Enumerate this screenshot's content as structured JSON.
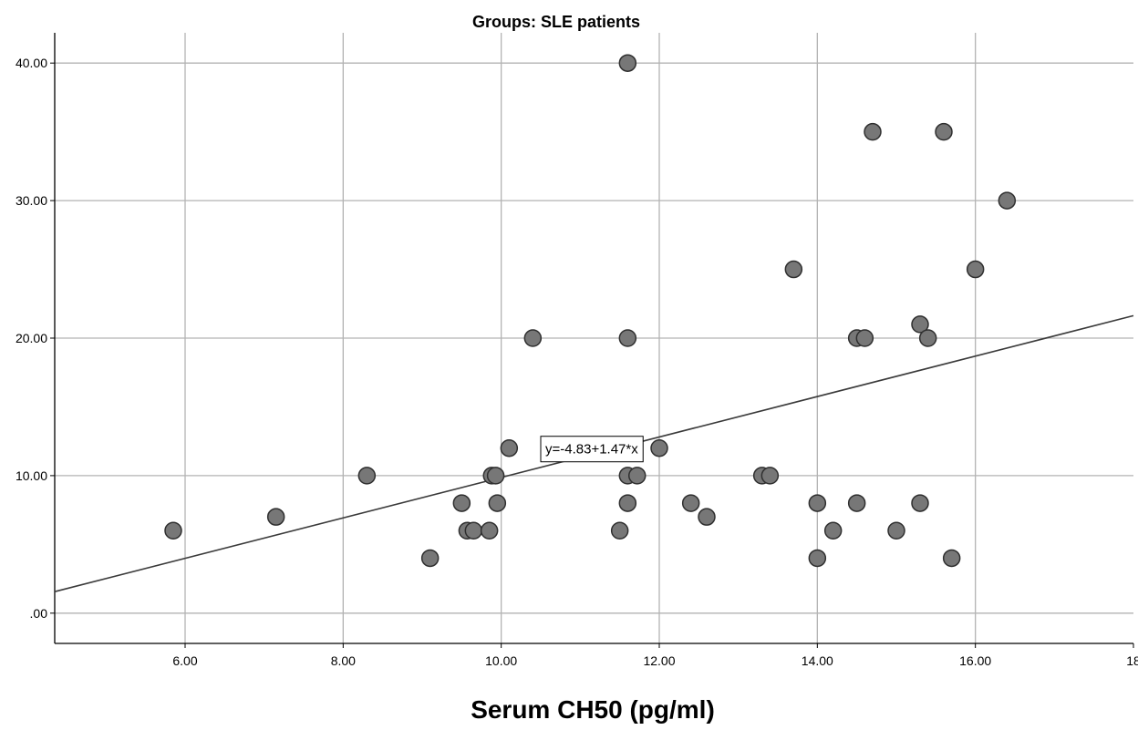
{
  "colors": {
    "point_fill": "#777777",
    "point_stroke": "#2f2f2f",
    "fit_line": "#3a3a3a",
    "grid": "#b3b3b3",
    "axis": "#000000",
    "background": "#ffffff"
  },
  "chart_data": {
    "type": "scatter",
    "title": "Groups: SLE patients",
    "xlabel": "Serum CH50 (pg/ml)",
    "ylabel": "",
    "x_ticks": [
      "6.00",
      "8.00",
      "10.00",
      "12.00",
      "14.00",
      "16.00",
      "18"
    ],
    "y_ticks": [
      ".00",
      "10.00",
      "20.00",
      "30.00",
      "40.00"
    ],
    "x_tick_values": [
      6,
      8,
      10,
      12,
      14,
      16,
      18
    ],
    "y_tick_values": [
      0,
      10,
      20,
      30,
      40
    ],
    "xlim": [
      4.35,
      18.0
    ],
    "ylim": [
      -2.2,
      42.2
    ],
    "grid": true,
    "fit_line": {
      "label": "y=-4.83+1.47*x",
      "intercept": -4.83,
      "slope": 1.47
    },
    "points": [
      {
        "x": 5.85,
        "y": 6
      },
      {
        "x": 7.15,
        "y": 7
      },
      {
        "x": 8.3,
        "y": 10
      },
      {
        "x": 9.1,
        "y": 4
      },
      {
        "x": 9.5,
        "y": 8
      },
      {
        "x": 9.57,
        "y": 6
      },
      {
        "x": 9.65,
        "y": 6
      },
      {
        "x": 9.85,
        "y": 6
      },
      {
        "x": 9.88,
        "y": 10
      },
      {
        "x": 9.93,
        "y": 10
      },
      {
        "x": 9.95,
        "y": 8
      },
      {
        "x": 10.1,
        "y": 12
      },
      {
        "x": 10.4,
        "y": 20
      },
      {
        "x": 11.5,
        "y": 6
      },
      {
        "x": 11.6,
        "y": 40
      },
      {
        "x": 11.6,
        "y": 20
      },
      {
        "x": 11.6,
        "y": 10
      },
      {
        "x": 11.6,
        "y": 8
      },
      {
        "x": 11.72,
        "y": 10
      },
      {
        "x": 12.0,
        "y": 12
      },
      {
        "x": 12.4,
        "y": 8
      },
      {
        "x": 12.6,
        "y": 7
      },
      {
        "x": 13.3,
        "y": 10
      },
      {
        "x": 13.4,
        "y": 10
      },
      {
        "x": 13.7,
        "y": 25
      },
      {
        "x": 14.0,
        "y": 8
      },
      {
        "x": 14.0,
        "y": 4
      },
      {
        "x": 14.2,
        "y": 6
      },
      {
        "x": 14.5,
        "y": 20
      },
      {
        "x": 14.5,
        "y": 8
      },
      {
        "x": 14.6,
        "y": 20
      },
      {
        "x": 14.7,
        "y": 35
      },
      {
        "x": 15.0,
        "y": 6
      },
      {
        "x": 15.3,
        "y": 21
      },
      {
        "x": 15.3,
        "y": 8
      },
      {
        "x": 15.4,
        "y": 20
      },
      {
        "x": 15.6,
        "y": 35
      },
      {
        "x": 15.7,
        "y": 4
      },
      {
        "x": 16.0,
        "y": 25
      },
      {
        "x": 16.4,
        "y": 30
      }
    ]
  }
}
